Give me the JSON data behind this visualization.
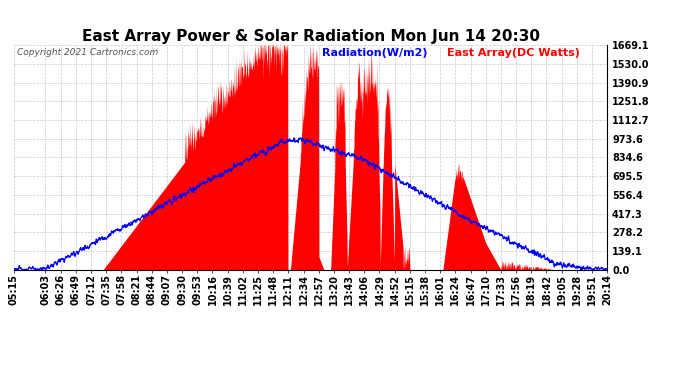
{
  "title": "East Array Power & Solar Radiation Mon Jun 14 20:30",
  "copyright": "Copyright 2021 Cartronics.com",
  "legend_radiation": "Radiation(W/m2)",
  "legend_array": "East Array(DC Watts)",
  "radiation_color": "blue",
  "array_color": "red",
  "ymax": 1669.1,
  "ymin": 0.0,
  "yticks": [
    0.0,
    139.1,
    278.2,
    417.3,
    556.4,
    695.5,
    834.6,
    973.6,
    1112.7,
    1251.8,
    1390.9,
    1530.0,
    1669.1
  ],
  "background_color": "#ffffff",
  "grid_color": "#b0b0b0",
  "title_fontsize": 11,
  "axis_fontsize": 7,
  "copyright_fontsize": 6.5,
  "legend_fontsize": 8
}
